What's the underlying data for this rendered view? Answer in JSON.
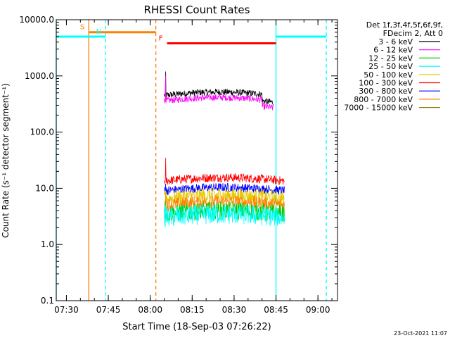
{
  "chart_data": {
    "type": "line",
    "title": "RHESSI Count Rates",
    "xlabel_prefix": "Start Time",
    "xlabel_date": "(18-Sep-03 07:26:22)",
    "ylabel": "Count Rate (s⁻¹ detector segment⁻¹)",
    "y_scale": "log",
    "ylim": [
      0.1,
      10000
    ],
    "xlim": [
      "07:26:22",
      "09:07:00"
    ],
    "x_ticks": [
      "07:30",
      "07:45",
      "08:00",
      "08:15",
      "08:30",
      "08:45",
      "09:00"
    ],
    "y_ticks": [
      "0.1",
      "1.0",
      "10.0",
      "100.0",
      "1000.0",
      "10000.0"
    ],
    "legend": {
      "placement": "right",
      "header": [
        "Det 1f,3f,4f,5f,6f,9f,",
        "FDecim 2, Att 0"
      ],
      "entries": [
        {
          "label": "3 - 6 keV",
          "color": "#000000"
        },
        {
          "label": "6 - 12 keV",
          "color": "#ff00ff"
        },
        {
          "label": "12 - 25 keV",
          "color": "#00cc00"
        },
        {
          "label": "25 - 50 keV",
          "color": "#00ffff"
        },
        {
          "label": "50 - 100 keV",
          "color": "#e6c800"
        },
        {
          "label": "100 - 300 keV",
          "color": "#ff0000"
        },
        {
          "label": "300 - 800 keV",
          "color": "#0000ff"
        },
        {
          "label": "800 - 7000 keV",
          "color": "#ff8000"
        },
        {
          "label": "7000 - 15000 keV",
          "color": "#808000"
        }
      ]
    },
    "series": [
      {
        "name": "3 - 6 keV",
        "color": "#000000",
        "start": "08:05",
        "end": "08:44",
        "level": 450,
        "noise": 0.06,
        "spike": 1200
      },
      {
        "name": "6 - 12 keV",
        "color": "#ff00ff",
        "start": "08:05",
        "end": "08:44",
        "level": 360,
        "noise": 0.06,
        "spike": 1000
      },
      {
        "name": "100 - 300 keV",
        "color": "#ff0000",
        "start": "08:05",
        "end": "08:48",
        "level": 13.5,
        "noise": 0.08,
        "spike": 35
      },
      {
        "name": "300 - 800 keV",
        "color": "#0000ff",
        "start": "08:05",
        "end": "08:48",
        "level": 9,
        "noise": 0.08,
        "spike": 12
      },
      {
        "name": "50 - 100 keV",
        "color": "#e6c800",
        "start": "08:05",
        "end": "08:48",
        "level": 6.5,
        "noise": 0.14,
        "spike": 9
      },
      {
        "name": "800 - 7000 keV",
        "color": "#ff8000",
        "start": "08:05",
        "end": "08:48",
        "level": 5,
        "noise": 0.12,
        "spike": 8
      },
      {
        "name": "12 - 25 keV",
        "color": "#00cc00",
        "start": "08:05",
        "end": "08:48",
        "level": 3.5,
        "noise": 0.16,
        "spike": 6
      },
      {
        "name": "25 - 50 keV",
        "color": "#00ffff",
        "start": "08:05",
        "end": "08:48",
        "level": 3.0,
        "noise": 0.18,
        "spike": 5
      }
    ],
    "flag_bars": [
      {
        "label": "S",
        "color": "#ff8000",
        "start": "07:38",
        "end": "08:02",
        "level": 6000
      },
      {
        "label": "N",
        "color": "#00ffff",
        "start": "07:26:22",
        "end": "07:44",
        "level": 5000
      },
      {
        "label": "N",
        "color": "#00ffff",
        "start": "08:45",
        "end": "09:03",
        "level": 5000
      },
      {
        "label": "F",
        "color": "#ff0000",
        "start": "08:06",
        "end": "08:45",
        "level": 3800
      }
    ],
    "flag_labels": [
      {
        "text": "S",
        "color": "#ff8000",
        "at": "07:38"
      },
      {
        "text": "N",
        "color": "#00ffff",
        "at": "07:44"
      },
      {
        "text": "F",
        "color": "#ff0000",
        "at": "08:06"
      }
    ],
    "vertical_markers": [
      {
        "time": "07:26:22",
        "color": "#00ffff",
        "style": "solid"
      },
      {
        "time": "07:38",
        "color": "#ff8000",
        "style": "solid"
      },
      {
        "time": "07:44",
        "color": "#00ffff",
        "style": "dashed"
      },
      {
        "time": "08:02",
        "color": "#ff8000",
        "style": "dashed"
      },
      {
        "time": "08:45",
        "color": "#00ffff",
        "style": "solid"
      },
      {
        "time": "09:03",
        "color": "#00ffff",
        "style": "dashed"
      }
    ],
    "timestamp": "23-Oct-2021 11:07"
  }
}
